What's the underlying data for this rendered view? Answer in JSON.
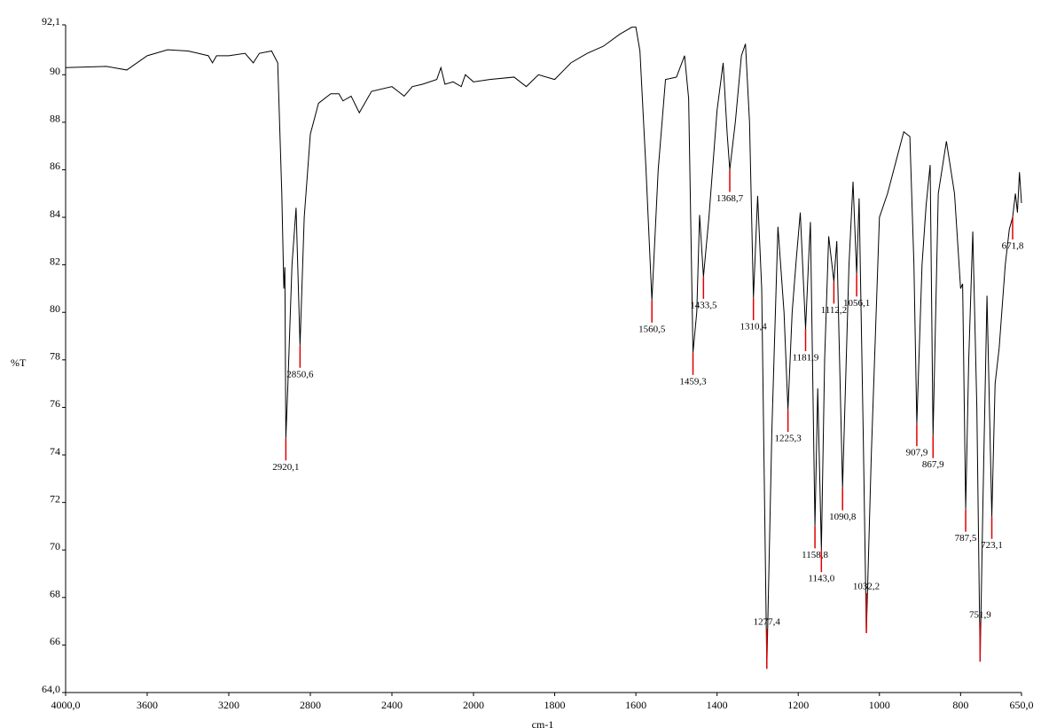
{
  "chart_data": {
    "type": "line",
    "xlabel": "cm-1",
    "ylabel": "%T",
    "xlim": [
      4000,
      650
    ],
    "x_scale_change": 2000,
    "ylim": [
      64,
      92.1
    ],
    "xticks": [
      {
        "value": 4000,
        "label": "4000,0"
      },
      3600,
      3200,
      2800,
      2400,
      2000,
      1800,
      1600,
      1400,
      1200,
      1000,
      800,
      {
        "value": 650,
        "label": "650,0"
      }
    ],
    "yticks": [
      {
        "value": 64,
        "label": "64,0"
      },
      66,
      68,
      70,
      72,
      74,
      76,
      78,
      80,
      82,
      84,
      86,
      88,
      90,
      {
        "value": 92.1,
        "label": "92,1"
      }
    ],
    "series": [
      {
        "color": "#000000",
        "x": [
          4000,
          3800,
          3700,
          3600,
          3500,
          3400,
          3350,
          3300,
          3280,
          3260,
          3200,
          3120,
          3080,
          3050,
          2990,
          2960,
          2940,
          2930,
          2925,
          2920.1,
          2910,
          2890,
          2870,
          2850.6,
          2830,
          2800,
          2760,
          2700,
          2660,
          2640,
          2600,
          2560,
          2500,
          2400,
          2370,
          2340,
          2300,
          2250,
          2180,
          2160,
          2140,
          2100,
          2060,
          2040,
          2000,
          1960,
          1900,
          1870,
          1840,
          1800,
          1760,
          1720,
          1680,
          1640,
          1610,
          1600,
          1590,
          1575,
          1560.5,
          1545,
          1527,
          1500,
          1480,
          1470,
          1459.3,
          1450,
          1443,
          1433.5,
          1420,
          1400,
          1385,
          1375,
          1368.7,
          1355,
          1340,
          1330,
          1320,
          1310.4,
          1300,
          1290,
          1277.4,
          1265,
          1250,
          1235,
          1225.3,
          1215,
          1205,
          1195,
          1181.9,
          1175,
          1170,
          1158.8,
          1152,
          1143,
          1135,
          1125,
          1112.2,
          1105,
          1090.8,
          1075,
          1065,
          1056.1,
          1050,
          1040,
          1032.2,
          1020,
          1000,
          980,
          940,
          925,
          915,
          907.9,
          895,
          885,
          875,
          867.9,
          855,
          835,
          815,
          800,
          795,
          787.5,
          780,
          770,
          760,
          751.9,
          745,
          735,
          723.1,
          715,
          705,
          690,
          680,
          671.8,
          665,
          660,
          655,
          650
        ],
        "values": [
          90.3,
          90.35,
          90.2,
          90.8,
          91.05,
          91.0,
          90.9,
          90.8,
          90.5,
          90.8,
          90.8,
          90.9,
          90.5,
          90.9,
          91.0,
          90.5,
          85,
          81.0,
          81.9,
          74.7,
          77,
          82,
          84.4,
          78.6,
          84,
          87.5,
          88.8,
          89.2,
          89.2,
          88.9,
          89.1,
          88.4,
          89.3,
          89.5,
          89.3,
          89.1,
          89.5,
          89.6,
          89.8,
          90.3,
          89.6,
          89.7,
          89.5,
          90.0,
          89.7,
          89.8,
          89.9,
          89.5,
          90.0,
          89.8,
          90.5,
          90.9,
          91.2,
          91.7,
          92.0,
          92.0,
          91.0,
          86,
          80.5,
          86,
          89.8,
          89.9,
          90.8,
          89,
          78.3,
          80,
          84.1,
          81.5,
          84,
          88.5,
          90.5,
          87.5,
          86.0,
          88,
          90.8,
          91.3,
          88,
          80.6,
          84.9,
          81,
          65.0,
          75,
          83.6,
          80,
          75.9,
          80,
          82.2,
          84.2,
          79.3,
          82,
          83.8,
          71.0,
          76.8,
          70.0,
          78,
          83.2,
          81.3,
          83,
          72.6,
          82,
          85.5,
          81.6,
          84.8,
          75,
          66.5,
          74,
          84,
          85,
          87.6,
          87.4,
          82,
          75.3,
          82,
          84.5,
          86.2,
          74.8,
          85,
          87.2,
          85,
          81,
          81.2,
          71.7,
          78,
          83.4,
          76,
          65.3,
          72,
          80.7,
          71.4,
          77,
          78.5,
          82,
          83.5,
          84,
          85,
          84.2,
          85.9,
          84.6
        ]
      }
    ],
    "peaks": {
      "x": [
        2920.1,
        2850.6,
        1560.5,
        1459.3,
        1433.5,
        1368.7,
        1310.4,
        1277.4,
        1225.3,
        1181.9,
        1158.8,
        1143.0,
        1112.2,
        1090.8,
        1056.1,
        1032.2,
        907.9,
        867.9,
        787.5,
        751.9,
        723.1,
        671.8
      ],
      "labels": [
        "2920,1",
        "2850,6",
        "1560,5",
        "1459,3",
        "1433,5",
        "1368,7",
        "1310,4",
        "1277,4",
        "1225,3",
        "1181,9",
        "1158,8",
        "1143,0",
        "1112,2",
        "1090,8",
        "1056,1",
        "1032,2",
        "907,9",
        "867,9",
        "787,5",
        "751,9",
        "723,1",
        "671,8"
      ],
      "y": [
        74.7,
        78.6,
        80.5,
        78.3,
        81.5,
        86.0,
        80.6,
        65.0,
        75.9,
        79.3,
        71.0,
        70.0,
        81.3,
        72.6,
        81.6,
        66.5,
        75.3,
        74.8,
        71.7,
        65.3,
        71.4,
        84
      ],
      "color": "#e00000"
    }
  }
}
